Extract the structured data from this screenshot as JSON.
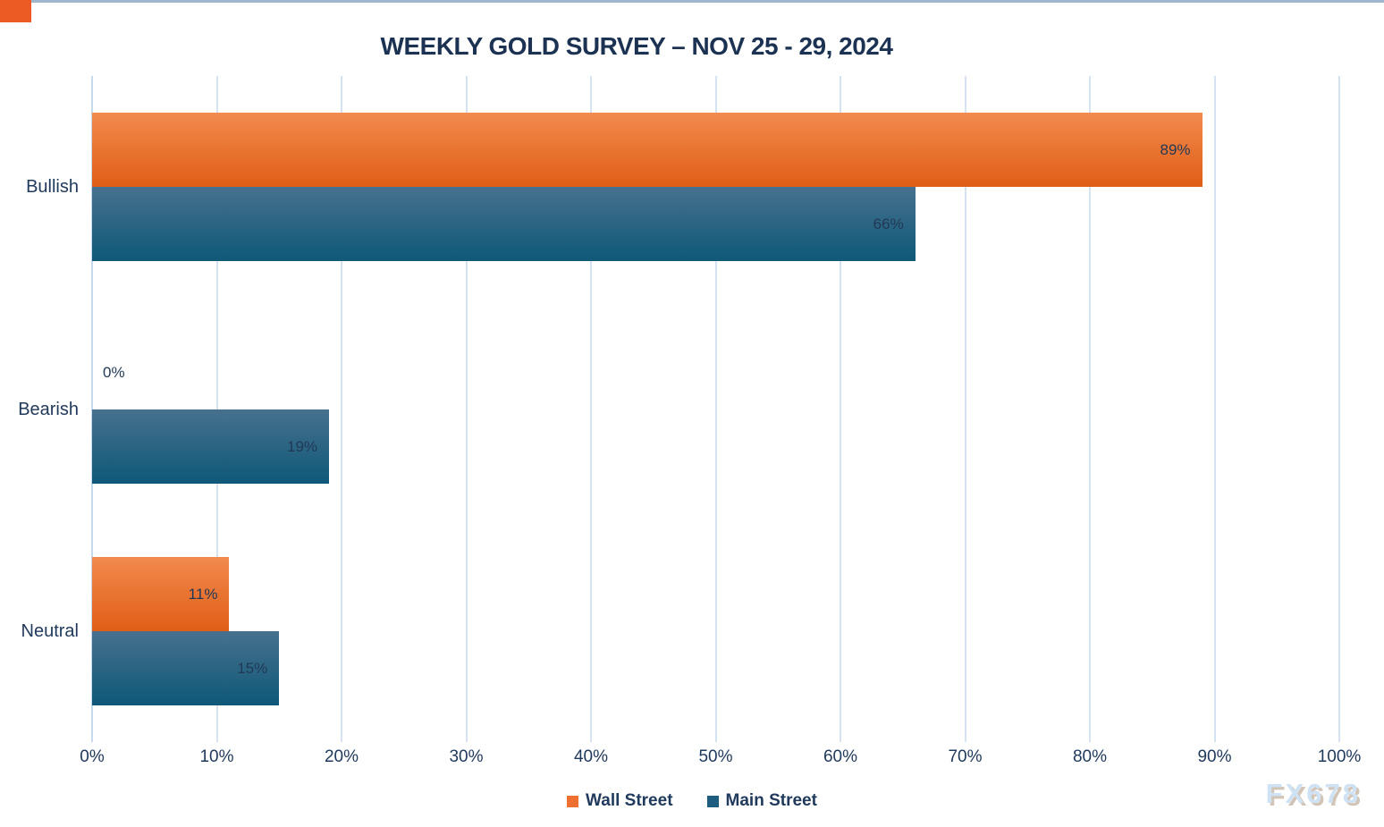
{
  "page": {
    "title": "WEEKLY GOLD SURVEY – NOV 25 - 29, 2024",
    "watermark": "FX678"
  },
  "colors": {
    "title_text": "#1c3252",
    "label_text": "#203a5c",
    "value_text": "#223955",
    "gridline": "#d5e2f1",
    "axis_line": "#c7daed",
    "top_border": "#9fb7cd",
    "corner_accent": "#ec5b24",
    "watermark_text": "#cfe2f4",
    "series": [
      {
        "top": "#f28a4e",
        "bottom": "#e05e16",
        "legend": "#ed7031"
      },
      {
        "top": "#47718e",
        "bottom": "#0e5878",
        "legend": "#1d5e80"
      }
    ]
  },
  "chart_data": {
    "type": "bar",
    "orientation": "horizontal",
    "title": "WEEKLY GOLD SURVEY – NOV 25 - 29, 2024",
    "categories": [
      "Bullish",
      "Bearish",
      "Neutral"
    ],
    "series": [
      {
        "name": "Wall Street",
        "values": [
          89,
          0,
          11
        ],
        "labels": [
          "89%",
          "0%",
          "11%"
        ]
      },
      {
        "name": "Main Street",
        "values": [
          66,
          19,
          15
        ],
        "labels": [
          "66%",
          "19%",
          "15%"
        ]
      }
    ],
    "xlim": [
      0,
      100
    ],
    "x_ticks": [
      "0%",
      "10%",
      "20%",
      "30%",
      "40%",
      "50%",
      "60%",
      "70%",
      "80%",
      "90%",
      "100%"
    ],
    "value_suffix": "%",
    "grid": true,
    "legend_position": "bottom"
  }
}
